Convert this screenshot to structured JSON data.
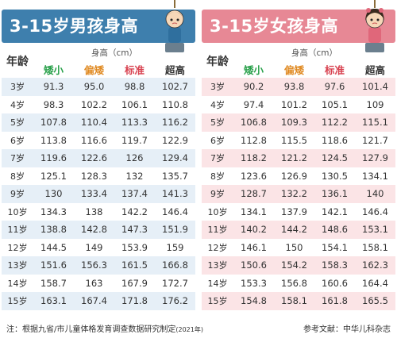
{
  "boys": {
    "title": "3-15岁男孩身高",
    "age_header": "年龄",
    "group_header": "身高（cm）",
    "columns": [
      "矮小",
      "偏矮",
      "标准",
      "超高"
    ],
    "rows": [
      [
        "3岁",
        "91.3",
        "95.0",
        "98.8",
        "102.7"
      ],
      [
        "4岁",
        "98.3",
        "102.2",
        "106.1",
        "110.8"
      ],
      [
        "5岁",
        "107.8",
        "110.4",
        "113.3",
        "116.2"
      ],
      [
        "6岁",
        "113.8",
        "116.6",
        "119.7",
        "122.9"
      ],
      [
        "7岁",
        "119.6",
        "122.6",
        "126",
        "129.4"
      ],
      [
        "8岁",
        "125.1",
        "128.3",
        "132",
        "135.7"
      ],
      [
        "9岁",
        "130",
        "133.4",
        "137.4",
        "141.3"
      ],
      [
        "10岁",
        "134.3",
        "138",
        "142.2",
        "146.4"
      ],
      [
        "11岁",
        "138.8",
        "142.8",
        "147.3",
        "151.9"
      ],
      [
        "12岁",
        "144.5",
        "149",
        "153.9",
        "159"
      ],
      [
        "13岁",
        "151.6",
        "156.3",
        "161.5",
        "166.8"
      ],
      [
        "14岁",
        "158.7",
        "163",
        "167.9",
        "172.7"
      ],
      [
        "15岁",
        "163.1",
        "167.4",
        "171.8",
        "176.2"
      ]
    ]
  },
  "girls": {
    "title": "3-15岁女孩身高",
    "age_header": "年龄",
    "group_header": "身高（cm）",
    "columns": [
      "矮小",
      "偏矮",
      "标准",
      "超高"
    ],
    "rows": [
      [
        "3岁",
        "90.2",
        "93.8",
        "97.6",
        "101.4"
      ],
      [
        "4岁",
        "97.4",
        "101.2",
        "105.1",
        "109"
      ],
      [
        "5岁",
        "106.8",
        "109.3",
        "112.2",
        "115.1"
      ],
      [
        "6岁",
        "112.8",
        "115.5",
        "118.6",
        "121.7"
      ],
      [
        "7岁",
        "118.2",
        "121.2",
        "124.5",
        "127.9"
      ],
      [
        "8岁",
        "123.6",
        "126.9",
        "130.5",
        "134.1"
      ],
      [
        "9岁",
        "128.7",
        "132.2",
        "136.1",
        "140"
      ],
      [
        "10岁",
        "134.1",
        "137.9",
        "142.1",
        "146.4"
      ],
      [
        "11岁",
        "140.2",
        "144.2",
        "148.6",
        "153.1"
      ],
      [
        "12岁",
        "146.1",
        "150",
        "154.1",
        "158.1"
      ],
      [
        "13岁",
        "150.6",
        "154.2",
        "158.3",
        "162.3"
      ],
      [
        "14岁",
        "153.3",
        "156.8",
        "160.6",
        "164.4"
      ],
      [
        "15岁",
        "154.8",
        "158.1",
        "161.8",
        "165.5"
      ]
    ]
  },
  "footer": {
    "note": "注：根据九省/市儿童体格发育调查数据研究制定",
    "note_year": "(2021年)",
    "reference": "参考文献：中华儿科杂志"
  },
  "colors": {
    "boys_banner": "#3e7fad",
    "girls_banner": "#e78895",
    "short": "#29a04a",
    "slightly_short": "#e08a22",
    "standard": "#d8414f",
    "tall": "#333333"
  }
}
